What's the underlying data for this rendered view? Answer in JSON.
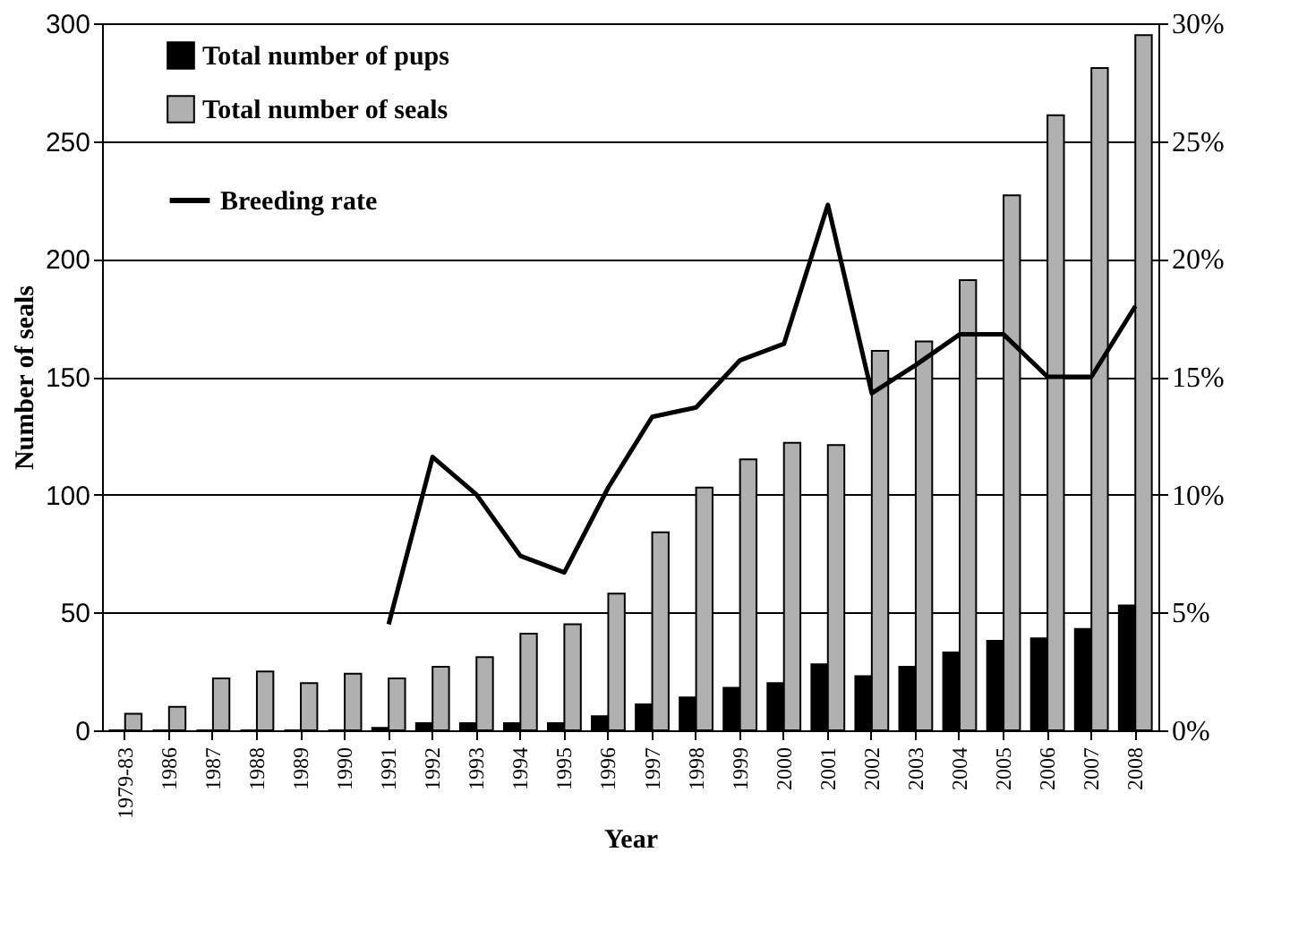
{
  "chart_data": {
    "type": "bar",
    "xlabel": "Year",
    "ylabel": "Number of seals",
    "categories": [
      "1979-83",
      "1986",
      "1987",
      "1988",
      "1989",
      "1990",
      "1991",
      "1992",
      "1993",
      "1994",
      "1995",
      "1996",
      "1997",
      "1998",
      "1999",
      "2000",
      "2001",
      "2002",
      "2003",
      "2004",
      "2005",
      "2006",
      "2007",
      "2008"
    ],
    "series": [
      {
        "name": "Total number of pups",
        "color": "#000000",
        "values": [
          0,
          0,
          0,
          0,
          0,
          0,
          1,
          3,
          3,
          3,
          3,
          6,
          11,
          14,
          18,
          20,
          28,
          23,
          27,
          33,
          38,
          39,
          43,
          53
        ]
      },
      {
        "name": "Total number of seals",
        "color": "#b0b0b0",
        "values": [
          7,
          10,
          22,
          25,
          20,
          24,
          22,
          27,
          31,
          41,
          45,
          58,
          84,
          103,
          115,
          122,
          121,
          161,
          165,
          191,
          227,
          261,
          281,
          295
        ]
      },
      {
        "name": "Breeding rate",
        "type": "line",
        "axis": "y2",
        "color": "#000000",
        "values": [
          null,
          null,
          null,
          null,
          null,
          null,
          4.5,
          11.6,
          10,
          7.4,
          6.7,
          10.3,
          13.3,
          13.7,
          15.7,
          16.4,
          22.3,
          14.3,
          15.5,
          16.8,
          16.8,
          15,
          15,
          18
        ]
      }
    ],
    "ylim": [
      0,
      300
    ],
    "yticks": [
      0,
      50,
      100,
      150,
      200,
      250,
      300
    ],
    "y2lim": [
      0,
      30
    ],
    "y2ticks": [
      {
        "value": 0,
        "label": "0%"
      },
      {
        "value": 5,
        "label": "5%"
      },
      {
        "value": 10,
        "label": "10%"
      },
      {
        "value": 15,
        "label": "15%"
      },
      {
        "value": 20,
        "label": "20%"
      },
      {
        "value": 25,
        "label": "25%"
      },
      {
        "value": 30,
        "label": "30%"
      }
    ],
    "grid": "y",
    "legend": "top left",
    "line_style": "solid"
  }
}
